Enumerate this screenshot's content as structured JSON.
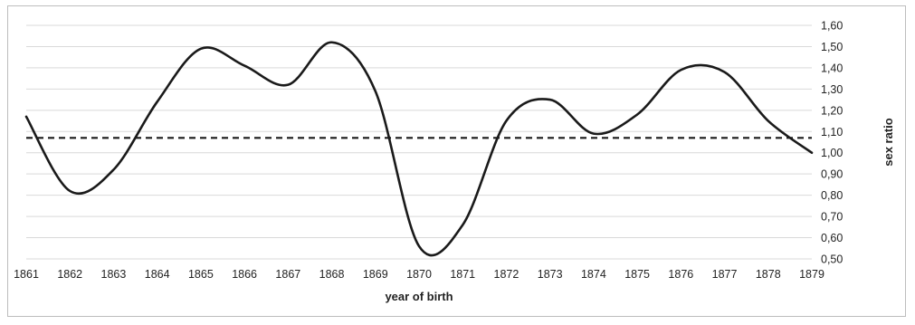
{
  "chart_data": {
    "type": "line",
    "title": "",
    "xlabel": "year of birth",
    "ylabel": "sex ratio",
    "x": [
      1861,
      1862,
      1863,
      1864,
      1865,
      1866,
      1867,
      1868,
      1869,
      1870,
      1871,
      1872,
      1873,
      1874,
      1875,
      1876,
      1877,
      1878,
      1879
    ],
    "x_tick_labels": [
      "1861",
      "1862",
      "1863",
      "1864",
      "1865",
      "1866",
      "1867",
      "1868",
      "1869",
      "1870",
      "1871",
      "1872",
      "1873",
      "1874",
      "1875",
      "1876",
      "1877",
      "1878",
      "1879"
    ],
    "y_tick_values": [
      0.5,
      0.6,
      0.7,
      0.8,
      0.9,
      1.0,
      1.1,
      1.2,
      1.3,
      1.4,
      1.5,
      1.6
    ],
    "y_tick_labels": [
      "0,50",
      "0,60",
      "0,70",
      "0,80",
      "0,90",
      "1,00",
      "1,10",
      "1,20",
      "1,30",
      "1,40",
      "1,50",
      "1,60"
    ],
    "series": [
      {
        "values": [
          1.17,
          0.82,
          0.92,
          1.24,
          1.49,
          1.41,
          1.32,
          1.52,
          1.29,
          0.56,
          0.66,
          1.15,
          1.25,
          1.09,
          1.18,
          1.39,
          1.38,
          1.15,
          1.0
        ]
      },
      {
        "values": [
          1.07,
          1.07
        ],
        "x": [
          1861,
          1879
        ],
        "style": "dashed"
      }
    ],
    "ylim": [
      0.5,
      1.6
    ],
    "xlim": [
      1861,
      1879
    ],
    "grid": true,
    "legend": "none",
    "y_axis_side": "right",
    "colors": {
      "line": "#1a1a1a",
      "grid": "#d9d9d9",
      "frame": "#bdbdbd"
    }
  }
}
